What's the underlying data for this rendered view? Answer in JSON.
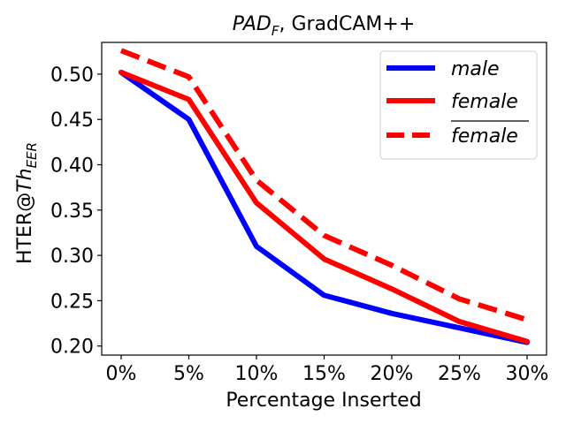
{
  "chart_data": {
    "type": "line",
    "title": {
      "main": "PAD",
      "main_sub": "F",
      "rest": ", GradCAM++"
    },
    "xlabel": "Percentage Inserted",
    "ylabel": {
      "prefix": "HTER@",
      "main": "Th",
      "sub": "EER"
    },
    "categories": [
      "0%",
      "5%",
      "10%",
      "15%",
      "20%",
      "25%",
      "30%"
    ],
    "ylim": [
      0.19,
      0.535
    ],
    "yticks": [
      0.2,
      0.25,
      0.3,
      0.35,
      0.4,
      0.45,
      0.5
    ],
    "ytick_labels": [
      "0.20",
      "0.25",
      "0.30",
      "0.35",
      "0.40",
      "0.45",
      "0.50"
    ],
    "legend_position": "top-right",
    "series": [
      {
        "name": "male",
        "color": "#0000ff",
        "style": "solid",
        "overline": false,
        "values": [
          0.502,
          0.45,
          0.31,
          0.256,
          0.236,
          0.22,
          0.204
        ]
      },
      {
        "name": "female",
        "color": "#ff0000",
        "style": "solid",
        "overline": false,
        "values": [
          0.502,
          0.472,
          0.358,
          0.296,
          0.263,
          0.227,
          0.205
        ]
      },
      {
        "name": "female",
        "color": "#ff0000",
        "style": "dashed",
        "overline": true,
        "values": [
          0.526,
          0.497,
          0.383,
          0.322,
          0.289,
          0.252,
          0.229
        ]
      }
    ]
  }
}
